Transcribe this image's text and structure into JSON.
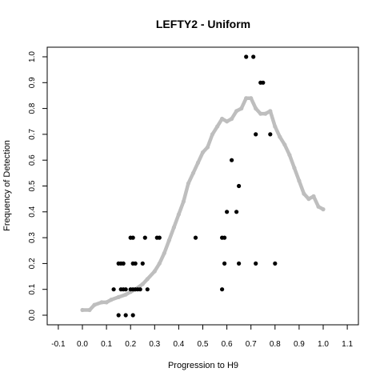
{
  "chart_data": {
    "type": "scatter",
    "title": "LEFTY2 - Uniform",
    "xlabel": "Progression to H9",
    "ylabel": "Frequency of Detection",
    "xlim": [
      -0.1,
      1.1
    ],
    "ylim": [
      0.0,
      1.0
    ],
    "x_ticks": [
      "-0.1",
      "0.0",
      "0.1",
      "0.2",
      "0.3",
      "0.4",
      "0.5",
      "0.6",
      "0.7",
      "0.8",
      "0.9",
      "1.0",
      "1.1"
    ],
    "y_ticks": [
      "0.0",
      "0.1",
      "0.2",
      "0.3",
      "0.4",
      "0.5",
      "0.6",
      "0.7",
      "0.8",
      "0.9",
      "1.0"
    ],
    "grid": false,
    "legend": "none",
    "series": [
      {
        "style": "smoothed-curve",
        "color": "#bebebe",
        "points": [
          [
            0.0,
            0.02
          ],
          [
            0.03,
            0.02
          ],
          [
            0.05,
            0.04
          ],
          [
            0.08,
            0.05
          ],
          [
            0.1,
            0.05
          ],
          [
            0.12,
            0.06
          ],
          [
            0.15,
            0.07
          ],
          [
            0.18,
            0.08
          ],
          [
            0.2,
            0.09
          ],
          [
            0.22,
            0.1
          ],
          [
            0.25,
            0.12
          ],
          [
            0.27,
            0.14
          ],
          [
            0.3,
            0.17
          ],
          [
            0.32,
            0.2
          ],
          [
            0.34,
            0.24
          ],
          [
            0.36,
            0.29
          ],
          [
            0.38,
            0.34
          ],
          [
            0.4,
            0.39
          ],
          [
            0.42,
            0.44
          ],
          [
            0.44,
            0.51
          ],
          [
            0.46,
            0.55
          ],
          [
            0.48,
            0.59
          ],
          [
            0.5,
            0.63
          ],
          [
            0.52,
            0.65
          ],
          [
            0.54,
            0.7
          ],
          [
            0.56,
            0.73
          ],
          [
            0.58,
            0.76
          ],
          [
            0.6,
            0.75
          ],
          [
            0.62,
            0.76
          ],
          [
            0.64,
            0.79
          ],
          [
            0.66,
            0.8
          ],
          [
            0.68,
            0.84
          ],
          [
            0.7,
            0.84
          ],
          [
            0.72,
            0.8
          ],
          [
            0.74,
            0.78
          ],
          [
            0.76,
            0.78
          ],
          [
            0.78,
            0.79
          ],
          [
            0.8,
            0.73
          ],
          [
            0.82,
            0.69
          ],
          [
            0.84,
            0.66
          ],
          [
            0.86,
            0.62
          ],
          [
            0.88,
            0.57
          ],
          [
            0.9,
            0.52
          ],
          [
            0.92,
            0.47
          ],
          [
            0.94,
            0.45
          ],
          [
            0.96,
            0.46
          ],
          [
            0.98,
            0.42
          ],
          [
            1.0,
            0.41
          ]
        ]
      },
      {
        "style": "points",
        "color": "#000000",
        "points": [
          [
            0.15,
            0.0
          ],
          [
            0.18,
            0.0
          ],
          [
            0.21,
            0.0
          ],
          [
            0.13,
            0.1
          ],
          [
            0.16,
            0.1
          ],
          [
            0.17,
            0.1
          ],
          [
            0.18,
            0.1
          ],
          [
            0.2,
            0.1
          ],
          [
            0.21,
            0.1
          ],
          [
            0.22,
            0.1
          ],
          [
            0.23,
            0.1
          ],
          [
            0.24,
            0.1
          ],
          [
            0.27,
            0.1
          ],
          [
            0.58,
            0.1
          ],
          [
            0.15,
            0.2
          ],
          [
            0.16,
            0.2
          ],
          [
            0.17,
            0.2
          ],
          [
            0.21,
            0.2
          ],
          [
            0.22,
            0.2
          ],
          [
            0.25,
            0.2
          ],
          [
            0.59,
            0.2
          ],
          [
            0.65,
            0.2
          ],
          [
            0.72,
            0.2
          ],
          [
            0.8,
            0.2
          ],
          [
            0.2,
            0.3
          ],
          [
            0.21,
            0.3
          ],
          [
            0.26,
            0.3
          ],
          [
            0.31,
            0.3
          ],
          [
            0.32,
            0.3
          ],
          [
            0.47,
            0.3
          ],
          [
            0.58,
            0.3
          ],
          [
            0.59,
            0.3
          ],
          [
            0.6,
            0.4
          ],
          [
            0.64,
            0.4
          ],
          [
            0.65,
            0.5
          ],
          [
            0.62,
            0.6
          ],
          [
            0.72,
            0.7
          ],
          [
            0.78,
            0.7
          ],
          [
            0.74,
            0.9
          ],
          [
            0.75,
            0.9
          ],
          [
            0.68,
            1.0
          ],
          [
            0.71,
            1.0
          ]
        ]
      }
    ]
  }
}
